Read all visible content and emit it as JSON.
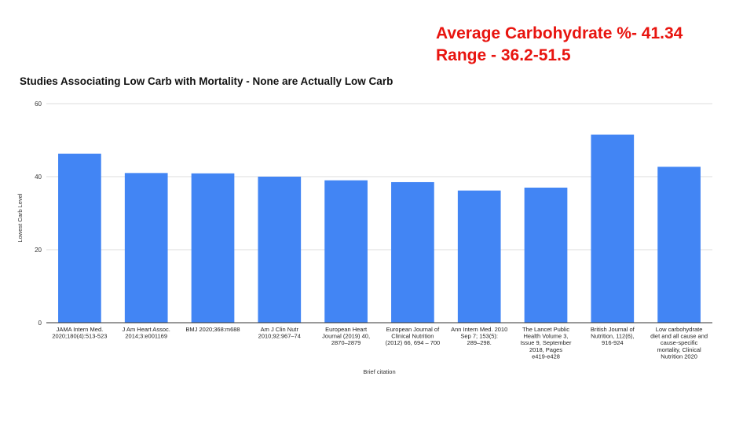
{
  "annotations": {
    "line1": "Average Carbohydrate %- 41.34",
    "line2": "Range - 36.2-51.5",
    "color": "#e8140f"
  },
  "chart_data": {
    "type": "bar",
    "title": "Studies Associating Low Carb with Mortality - None are Actually Low Carb",
    "xlabel": "Brief citation",
    "ylabel": "Lowest Carb Level",
    "ylim": [
      0,
      60
    ],
    "yticks": [
      0,
      20,
      40,
      60
    ],
    "grid": true,
    "bar_color": "#4285f4",
    "categories": [
      [
        "JAMA Intern Med.",
        "2020;180(4):513-523"
      ],
      [
        "J Am Heart Assoc.",
        "2014;3:e001169"
      ],
      [
        "BMJ 2020;368:m688"
      ],
      [
        "Am J Clin Nutr",
        "2010;92:967–74"
      ],
      [
        "European Heart",
        "Journal (2019) 40,",
        "2870–2879"
      ],
      [
        "European Journal of",
        "Clinical Nutrition",
        "(2012) 66, 694 – 700"
      ],
      [
        "Ann Intern Med. 2010",
        "Sep 7; 153(5):",
        "289–298."
      ],
      [
        "The Lancet Public",
        "Health Volume 3,",
        "Issue 9, September",
        "2018, Pages",
        "e419-e428"
      ],
      [
        "British Journal of",
        "Nutrition, 112(6),",
        "916-924"
      ],
      [
        "Low carbohydrate",
        "diet and all cause and",
        "cause-specific",
        "mortality, Clinical",
        "Nutrition 2020"
      ]
    ],
    "series": [
      {
        "values": [
          46.3,
          41.0,
          40.9,
          40.0,
          39.0,
          38.5,
          36.2,
          37.0,
          51.5,
          42.7
        ]
      }
    ]
  }
}
